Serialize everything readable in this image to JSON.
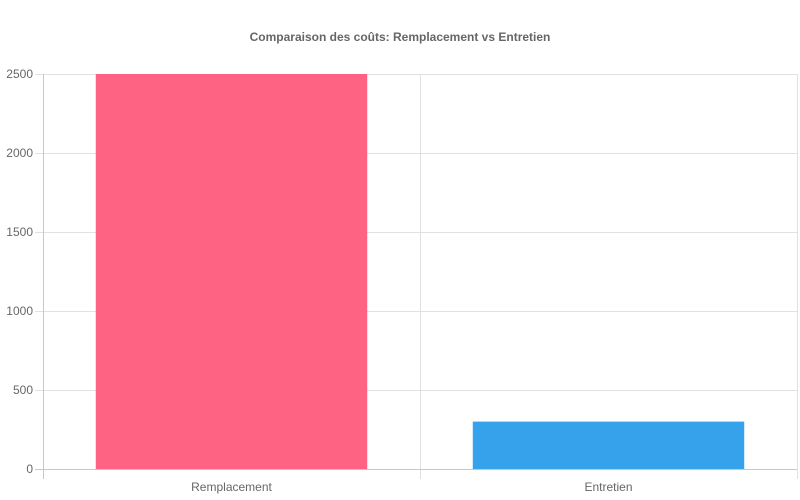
{
  "chart_data": {
    "type": "bar",
    "title": "Comparaison des coûts: Remplacement vs Entretien",
    "categories": [
      "Remplacement",
      "Entretien"
    ],
    "series": [
      {
        "values": [
          2500,
          300
        ]
      }
    ],
    "ylim": [
      0,
      2500
    ],
    "yticks": [
      0,
      500,
      1000,
      1500,
      2000,
      2500
    ],
    "xlabel": "",
    "ylabel": "",
    "grid": true,
    "legend": "none",
    "colors": [
      "#ff6384",
      "#36a2eb"
    ]
  }
}
